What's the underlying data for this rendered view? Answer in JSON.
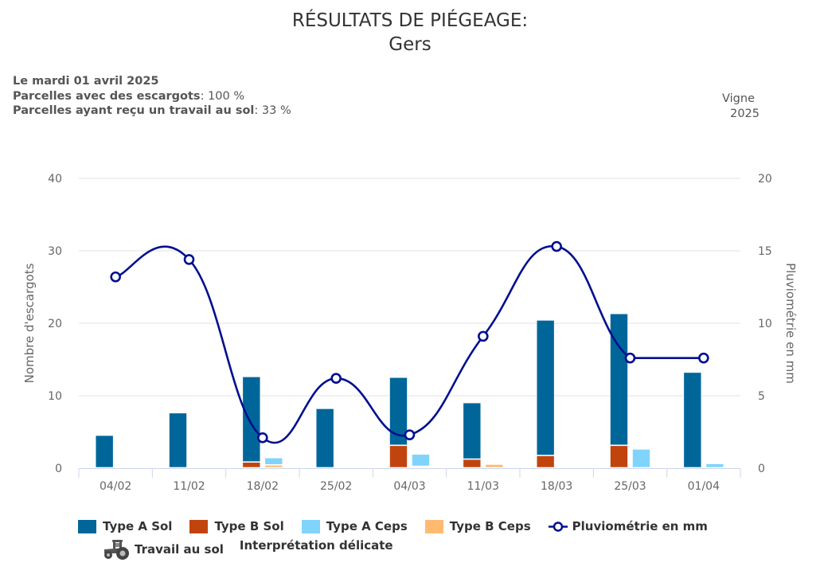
{
  "header": {
    "title": "RÉSULTATS DE PIÉGEAGE:",
    "subtitle": "Gers"
  },
  "info": {
    "date": "Le mardi 01 avril 2025",
    "snails_label": "Parcelles avec des escargots",
    "snails_value": ": 100 %",
    "tillage_label": "Parcelles ayant reçu un travail au sol",
    "tillage_value": ": 33 %",
    "crop": "Vigne",
    "year": "2025"
  },
  "colors": {
    "type_a_sol": "#006699",
    "type_b_sol": "#c1440e",
    "type_a_ceps": "#80d4fc",
    "type_b_ceps": "#ffba72",
    "pluvio": "#000f8f",
    "grid": "#e0e0e0",
    "axis": "#ccd6eb"
  },
  "chart_data": {
    "type": "bar",
    "title": "RÉSULTATS DE PIÉGEAGE: Gers",
    "categories": [
      "04/02",
      "11/02",
      "18/02",
      "25/02",
      "04/03",
      "11/03",
      "18/03",
      "25/03",
      "01/04"
    ],
    "ylabel": "Nombre d'escargots",
    "ylabel_right": "Pluviométrie en mm",
    "ylim": [
      0,
      40
    ],
    "ylim_right": [
      0,
      20
    ],
    "yticks": [
      "0",
      "10",
      "20",
      "30",
      "40"
    ],
    "yticks_right": [
      "0",
      "5",
      "10",
      "15",
      "20"
    ],
    "grid": true,
    "legend_position": "bottom",
    "stacks": [
      {
        "stack": "Sol",
        "series": [
          {
            "name": "Type A Sol",
            "color_key": "type_a_sol",
            "values": [
              4.5,
              7.6,
              11.8,
              8.2,
              9.4,
              7.8,
              18.7,
              18.2,
              13.2
            ]
          },
          {
            "name": "Type B Sol",
            "color_key": "type_b_sol",
            "values": [
              0,
              0,
              0.8,
              0,
              3.1,
              1.2,
              1.7,
              3.1,
              0
            ]
          }
        ]
      },
      {
        "stack": "Ceps",
        "series": [
          {
            "name": "Type A Ceps",
            "color_key": "type_a_ceps",
            "values": [
              0,
              0,
              1.0,
              0,
              1.7,
              0,
              0,
              2.6,
              0.6
            ]
          },
          {
            "name": "Type B Ceps",
            "color_key": "type_b_ceps",
            "values": [
              0,
              0,
              0.4,
              0,
              0.2,
              0.5,
              0,
              0,
              0
            ]
          }
        ]
      }
    ],
    "line_series": {
      "name": "Pluviométrie en mm",
      "axis": "right",
      "color_key": "pluvio",
      "values": [
        13.2,
        14.4,
        2.1,
        6.2,
        2.3,
        9.1,
        15.3,
        7.6,
        7.6
      ]
    }
  },
  "legend": {
    "items": [
      {
        "label": "Type A Sol",
        "color_key": "type_a_sol"
      },
      {
        "label": "Type B Sol",
        "color_key": "type_b_sol"
      },
      {
        "label": "Type A Ceps",
        "color_key": "type_a_ceps"
      },
      {
        "label": "Type B Ceps",
        "color_key": "type_b_ceps"
      }
    ],
    "line_label": "Pluviométrie en mm",
    "tillage_label": "Travail au sol",
    "note": "Interprétation délicate"
  }
}
